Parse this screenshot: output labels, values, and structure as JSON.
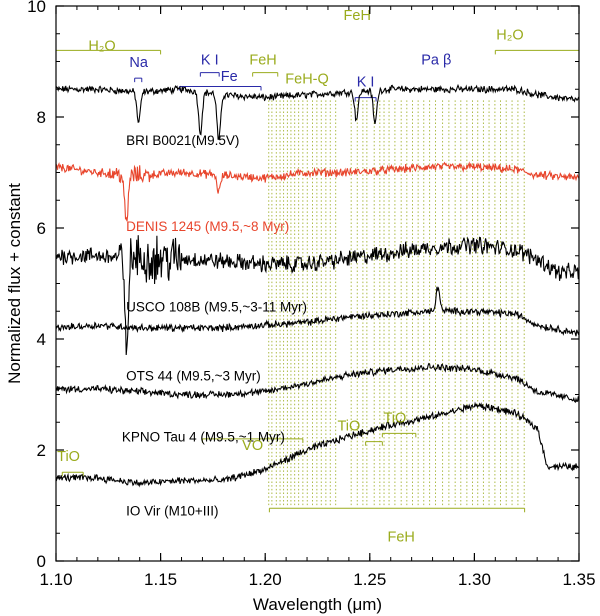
{
  "chart_data": {
    "type": "line",
    "xlabel": "Wavelength (μm)",
    "ylabel": "Normalized flux + constant",
    "xlim": [
      1.1,
      1.35
    ],
    "ylim": [
      0,
      10
    ],
    "xticks": [
      1.1,
      1.15,
      1.2,
      1.25,
      1.3,
      1.35
    ],
    "xtick_labels": [
      "1.10",
      "1.15",
      "1.20",
      "1.25",
      "1.30",
      "1.35"
    ],
    "yticks": [
      0,
      2,
      4,
      6,
      8,
      10
    ],
    "ytick_labels": [
      "0",
      "2",
      "4",
      "6",
      "8",
      "10"
    ],
    "colors": {
      "black": "#000000",
      "red": "#e8452c",
      "feature_green": "#9aab1d",
      "feature_blue": "#2a2aa8"
    },
    "series": [
      {
        "name": "BRI B0021 (M9.5V)",
        "label": "BRI B0021(M9.5V)",
        "color": "#000000",
        "noise": 0.05,
        "x": [
          1.1,
          1.12,
          1.14,
          1.16,
          1.18,
          1.2,
          1.22,
          1.24,
          1.26,
          1.28,
          1.3,
          1.32,
          1.33,
          1.35
        ],
        "y": [
          8.5,
          8.5,
          8.45,
          8.5,
          8.4,
          8.35,
          8.4,
          8.45,
          8.5,
          8.5,
          8.5,
          8.5,
          8.4,
          8.3
        ],
        "dips": [
          [
            1.1395,
            0.55
          ],
          [
            1.169,
            0.75
          ],
          [
            1.1778,
            0.85
          ],
          [
            1.2436,
            0.5
          ],
          [
            1.2525,
            0.6
          ]
        ]
      },
      {
        "name": "DENIS 1245 (M9.5, ~8 Myr)",
        "label": "DENIS 1245 (M9.5,~8 Myr)",
        "color": "#e8452c",
        "noise": 0.06,
        "x": [
          1.1,
          1.12,
          1.14,
          1.16,
          1.18,
          1.2,
          1.22,
          1.24,
          1.26,
          1.28,
          1.3,
          1.32,
          1.33,
          1.35
        ],
        "y": [
          7.1,
          7.0,
          6.95,
          7.0,
          6.95,
          6.9,
          7.0,
          7.0,
          7.05,
          7.1,
          7.1,
          7.05,
          6.95,
          6.9
        ],
        "dips": [
          [
            1.1336,
            0.9
          ],
          [
            1.1778,
            0.3
          ]
        ]
      },
      {
        "name": "USCO 108B (M9.5, ~3-11 Myr)",
        "label": "USCO 108B (M9.5,~3-11 Myr)",
        "color": "#000000",
        "noise": 0.12,
        "x": [
          1.1,
          1.12,
          1.14,
          1.16,
          1.18,
          1.2,
          1.22,
          1.24,
          1.26,
          1.28,
          1.3,
          1.32,
          1.33,
          1.34,
          1.35
        ],
        "y": [
          5.5,
          5.5,
          5.45,
          5.45,
          5.4,
          5.35,
          5.35,
          5.45,
          5.55,
          5.65,
          5.7,
          5.6,
          5.45,
          5.2,
          5.2
        ],
        "dips": [
          [
            1.1336,
            1.6
          ]
        ]
      },
      {
        "name": "OTS 44 (M9.5, ~3 Myr)",
        "label": "OTS 44 (M9.5,~3 Myr)",
        "color": "#000000",
        "noise": 0.05,
        "x": [
          1.1,
          1.12,
          1.14,
          1.16,
          1.18,
          1.2,
          1.22,
          1.24,
          1.26,
          1.28,
          1.3,
          1.32,
          1.33,
          1.35
        ],
        "y": [
          4.2,
          4.25,
          4.2,
          4.2,
          4.2,
          4.25,
          4.3,
          4.4,
          4.45,
          4.5,
          4.5,
          4.45,
          4.25,
          4.1
        ],
        "dips": [
          [
            1.2826,
            -0.45
          ]
        ]
      },
      {
        "name": "KPNO Tau 4 (M9.5, ~1 Myr)",
        "label": "KPNO Tau 4 (M9.5,~1 Myr)",
        "color": "#000000",
        "noise": 0.05,
        "x": [
          1.1,
          1.12,
          1.14,
          1.16,
          1.18,
          1.2,
          1.22,
          1.24,
          1.26,
          1.28,
          1.3,
          1.32,
          1.33,
          1.35
        ],
        "y": [
          3.1,
          3.1,
          3.05,
          3.0,
          3.0,
          3.05,
          3.2,
          3.35,
          3.45,
          3.5,
          3.45,
          3.3,
          3.05,
          2.9
        ],
        "dips": []
      },
      {
        "name": "IO Vir (M10+III)",
        "label": "IO Vir (M10+III)",
        "color": "#000000",
        "noise": 0.05,
        "x": [
          1.1,
          1.12,
          1.14,
          1.16,
          1.18,
          1.2,
          1.22,
          1.24,
          1.26,
          1.28,
          1.3,
          1.31,
          1.32,
          1.33,
          1.335,
          1.35
        ],
        "y": [
          1.5,
          1.5,
          1.4,
          1.45,
          1.45,
          1.65,
          2.0,
          2.25,
          2.45,
          2.6,
          2.8,
          2.75,
          2.65,
          2.4,
          1.7,
          1.7
        ],
        "dips": []
      }
    ],
    "annotations": [
      {
        "text": "Na",
        "color": "#2a2aa8",
        "x": 1.1395,
        "y": 8.9
      },
      {
        "text": "K I",
        "color": "#2a2aa8",
        "x": 1.1735,
        "y": 8.95
      },
      {
        "text": "Fe",
        "color": "#2a2aa8",
        "x": 1.1828,
        "y": 8.65
      },
      {
        "text": "K I",
        "color": "#2a2aa8",
        "x": 1.248,
        "y": 8.55
      },
      {
        "text": "Pa β",
        "color": "#2a2aa8",
        "x": 1.2818,
        "y": 8.95
      },
      {
        "text": "H₂O",
        "color": "#9aab1d",
        "x": 1.122,
        "y": 9.2
      },
      {
        "text": "FeH",
        "color": "#9aab1d",
        "x": 1.199,
        "y": 8.95
      },
      {
        "text": "FeH-Q",
        "color": "#9aab1d",
        "x": 1.22,
        "y": 8.6
      },
      {
        "text": "FeH",
        "color": "#9aab1d",
        "x": 1.244,
        "y": 9.75
      },
      {
        "text": "H₂O",
        "color": "#9aab1d",
        "x": 1.317,
        "y": 9.4
      },
      {
        "text": "TiO",
        "color": "#9aab1d",
        "x": 1.106,
        "y": 1.8
      },
      {
        "text": "VO",
        "color": "#9aab1d",
        "x": 1.194,
        "y": 2.0
      },
      {
        "text": "TiO",
        "color": "#9aab1d",
        "x": 1.24,
        "y": 2.35
      },
      {
        "text": "TiO",
        "color": "#9aab1d",
        "x": 1.262,
        "y": 2.5
      },
      {
        "text": "FeH",
        "color": "#9aab1d",
        "x": 1.265,
        "y": 0.35
      }
    ],
    "feature_ranges": [
      {
        "feature": "H2O",
        "color": "#9aab1d",
        "x1": 1.1,
        "x2": 1.15,
        "y": 9.2
      },
      {
        "feature": "Na",
        "color": "#2a2aa8",
        "x1": 1.1376,
        "x2": 1.141,
        "y": 8.7
      },
      {
        "feature": "K I",
        "color": "#2a2aa8",
        "x1": 1.169,
        "x2": 1.178,
        "y": 8.8
      },
      {
        "feature": "Fe",
        "color": "#2a2aa8",
        "x1": 1.159,
        "x2": 1.198,
        "y": 8.55
      },
      {
        "feature": "FeH",
        "color": "#9aab1d",
        "x1": 1.194,
        "x2": 1.206,
        "y": 8.8
      },
      {
        "feature": "K I",
        "color": "#2a2aa8",
        "x1": 1.243,
        "x2": 1.253,
        "y": 8.35
      },
      {
        "feature": "H2O",
        "color": "#9aab1d",
        "x1": 1.31,
        "x2": 1.35,
        "y": 9.2
      },
      {
        "feature": "VO",
        "color": "#9aab1d",
        "x1": 1.17,
        "x2": 1.218,
        "y": 2.2
      },
      {
        "feature": "TiO",
        "color": "#9aab1d",
        "x1": 1.103,
        "x2": 1.113,
        "y": 1.6
      },
      {
        "feature": "TiO",
        "color": "#9aab1d",
        "x1": 1.248,
        "x2": 1.256,
        "y": 2.15
      },
      {
        "feature": "TiO",
        "color": "#9aab1d",
        "x1": 1.256,
        "x2": 1.272,
        "y": 2.3
      },
      {
        "feature": "FeH",
        "color": "#9aab1d",
        "x1": 1.202,
        "x2": 1.324,
        "y": 0.95
      }
    ],
    "feh_lines": [
      1.2017,
      1.2032,
      1.2053,
      1.2071,
      1.2088,
      1.2106,
      1.2123,
      1.2141,
      1.216,
      1.218,
      1.2201,
      1.2226,
      1.2247,
      1.2268,
      1.229,
      1.2311,
      1.2337,
      1.2411,
      1.244,
      1.2467,
      1.2486,
      1.2521,
      1.2548,
      1.2568,
      1.2592,
      1.262,
      1.265,
      1.2677,
      1.2704,
      1.2731,
      1.2758,
      1.2786,
      1.2814,
      1.2848,
      1.2878,
      1.2908,
      1.2935,
      1.2964,
      1.2991,
      1.3016,
      1.3043,
      1.307,
      1.3098,
      1.3125,
      1.3152,
      1.318,
      1.3208,
      1.3238
    ],
    "feh_lines_y_top": 8.3,
    "feh_lines_y_bottom": 1.0
  }
}
